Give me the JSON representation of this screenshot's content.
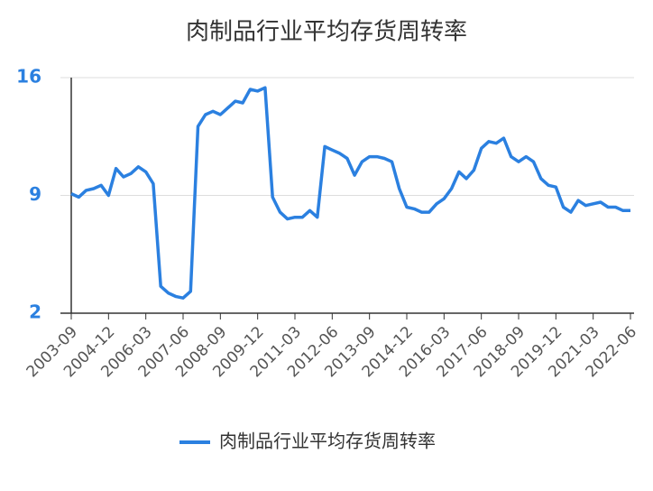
{
  "chart_data": {
    "type": "line",
    "title": "肉制品行业平均存货周转率",
    "categories": [
      "2003-09",
      null,
      null,
      null,
      null,
      "2004-12",
      null,
      null,
      null,
      null,
      "2006-03",
      null,
      null,
      null,
      null,
      "2007-06",
      null,
      null,
      null,
      null,
      "2008-09",
      null,
      null,
      null,
      null,
      "2009-12",
      null,
      null,
      null,
      null,
      "2011-03",
      null,
      null,
      null,
      null,
      "2012-06",
      null,
      null,
      null,
      null,
      "2013-09",
      null,
      null,
      null,
      null,
      "2014-12",
      null,
      null,
      null,
      null,
      "2016-03",
      null,
      null,
      null,
      null,
      "2017-06",
      null,
      null,
      null,
      null,
      "2018-09",
      null,
      null,
      null,
      null,
      "2019-12",
      null,
      null,
      null,
      null,
      "2021-03",
      null,
      null,
      null,
      null,
      "2022-06"
    ],
    "series": [
      {
        "name": "肉制品行业平均存货周转率",
        "color": "#2b80e0",
        "values": [
          9.1,
          8.9,
          9.3,
          9.4,
          9.6,
          9.0,
          10.6,
          10.1,
          10.3,
          10.7,
          10.4,
          9.7,
          3.6,
          3.2,
          3.0,
          2.9,
          3.3,
          13.1,
          13.8,
          14.0,
          13.8,
          14.2,
          14.6,
          14.5,
          15.3,
          15.2,
          15.4,
          8.9,
          8.0,
          7.6,
          7.7,
          7.7,
          8.1,
          7.7,
          11.9,
          11.7,
          11.5,
          11.2,
          10.2,
          11.0,
          11.3,
          11.3,
          11.2,
          11.0,
          9.4,
          8.3,
          8.2,
          8.0,
          8.0,
          8.5,
          8.8,
          9.4,
          10.4,
          10.0,
          10.5,
          11.8,
          12.2,
          12.1,
          12.4,
          11.3,
          11.0,
          11.3,
          11.0,
          10.0,
          9.6,
          9.5,
          8.3,
          8.0,
          8.7,
          8.4,
          8.5,
          8.6,
          8.3,
          8.3,
          8.1,
          8.1
        ]
      }
    ],
    "ylim": [
      2,
      16
    ],
    "yticks": [
      2,
      9,
      16
    ],
    "grid": true
  }
}
